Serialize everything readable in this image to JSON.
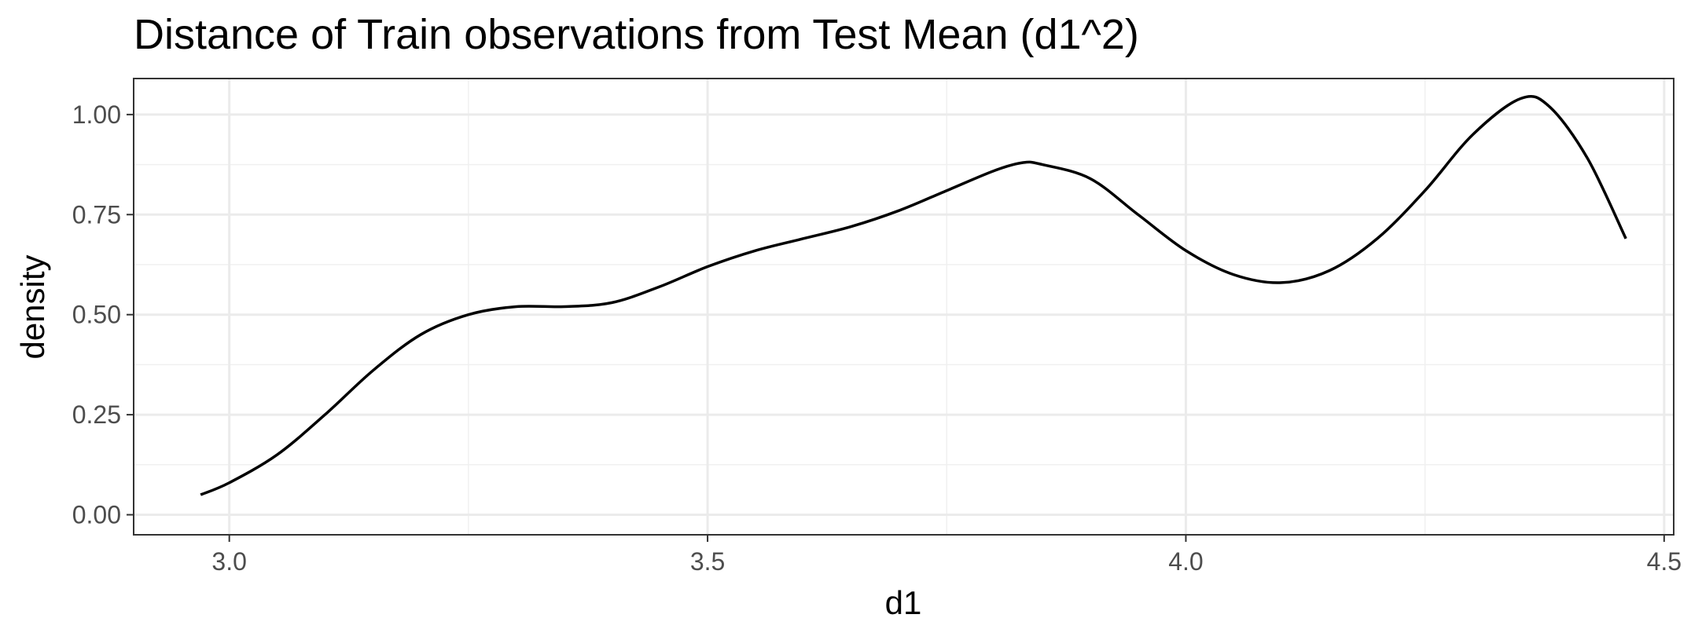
{
  "chart_data": {
    "type": "line",
    "title": "Distance of Train observations from Test Mean (d1^2)",
    "xlabel": "d1",
    "ylabel": "density",
    "xlim": [
      2.9,
      4.51
    ],
    "ylim": [
      -0.05,
      1.09
    ],
    "x_ticks": [
      "3.0",
      "3.5",
      "4.0",
      "4.5"
    ],
    "y_ticks": [
      "0.00",
      "0.25",
      "0.50",
      "0.75",
      "1.00"
    ],
    "grid": true,
    "series": [
      {
        "color": "#000000",
        "x": [
          2.97,
          3.0,
          3.05,
          3.1,
          3.15,
          3.2,
          3.25,
          3.3,
          3.35,
          3.4,
          3.45,
          3.5,
          3.55,
          3.6,
          3.65,
          3.7,
          3.75,
          3.8,
          3.83,
          3.85,
          3.9,
          3.95,
          4.0,
          4.05,
          4.1,
          4.15,
          4.2,
          4.25,
          4.3,
          4.35,
          4.38,
          4.42,
          4.46
        ],
        "y": [
          0.05,
          0.08,
          0.15,
          0.25,
          0.36,
          0.45,
          0.5,
          0.52,
          0.52,
          0.53,
          0.57,
          0.62,
          0.66,
          0.69,
          0.72,
          0.76,
          0.81,
          0.86,
          0.88,
          0.875,
          0.84,
          0.75,
          0.66,
          0.6,
          0.58,
          0.61,
          0.69,
          0.81,
          0.95,
          1.04,
          1.02,
          0.89,
          0.69
        ]
      }
    ]
  }
}
